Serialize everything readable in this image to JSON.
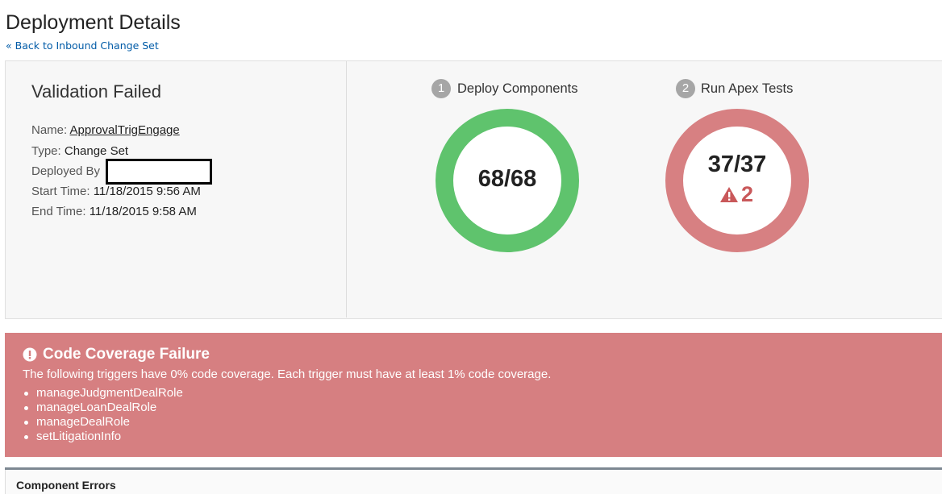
{
  "header": {
    "title": "Deployment Details",
    "back_link": "« Back to Inbound Change Set"
  },
  "status": {
    "title": "Validation Failed",
    "fields": [
      {
        "label": "Name:",
        "value": "ApprovalTrigEngage"
      },
      {
        "label": "Type:",
        "value": "Change Set"
      },
      {
        "label": "Deployed By"
      },
      {
        "label": "Start Time:",
        "value": "11/18/2015 9:56 AM"
      },
      {
        "label": "End Time:",
        "value": "11/18/2015 9:58 AM"
      }
    ]
  },
  "steps": [
    {
      "number": "1",
      "label": "Deploy Components",
      "result": "68/68"
    },
    {
      "number": "2",
      "label": "Run Apex Tests",
      "result": "37/37",
      "failures": "2"
    }
  ],
  "alert": {
    "title": "Code Coverage Failure",
    "message": "The following triggers have 0% code coverage. Each trigger must have at least 1% code coverage.",
    "items": [
      "manageJudgmentDealRole",
      "manageLoanDealRole",
      "manageDealRole",
      "setLitigationInfo"
    ]
  },
  "section": {
    "title": "Component Errors"
  }
}
